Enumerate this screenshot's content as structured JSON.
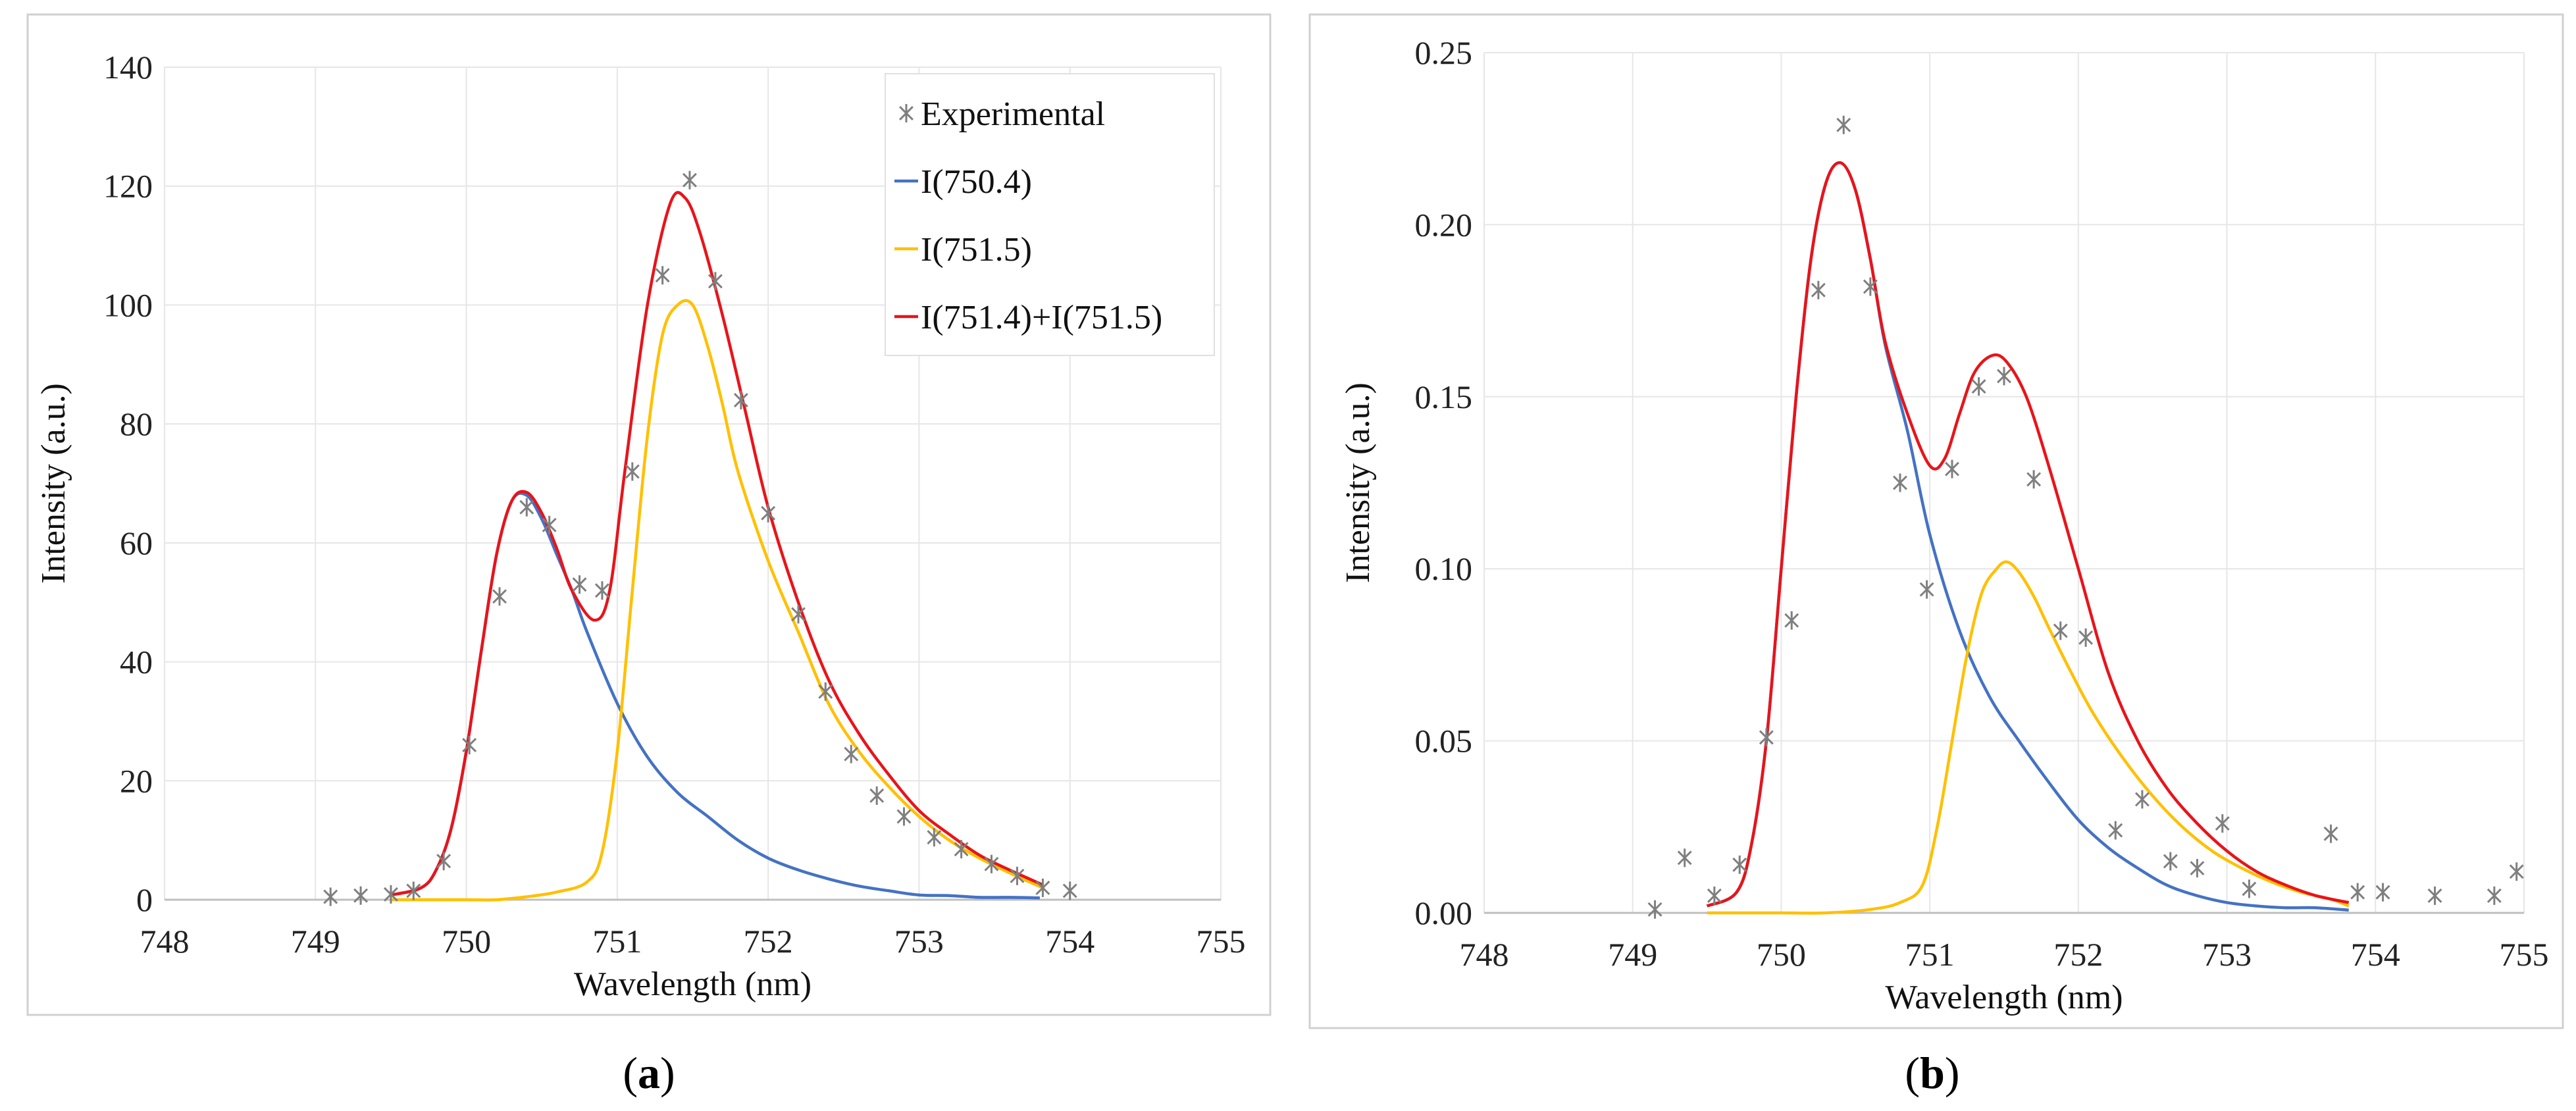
{
  "colors": {
    "blue": "#4472C4",
    "yellow": "#FFC000",
    "red": "#E8141A",
    "marker": "#7f7f7f",
    "grid": "#e6e6e6",
    "frame": "#d0d0d0"
  },
  "captions": {
    "a": "a",
    "b": "b"
  },
  "chart_data": [
    {
      "type": "line",
      "panel": "a",
      "title": "",
      "xlabel": "Wavelength (nm)",
      "ylabel": "Intensity (a.u.)",
      "xlim": [
        748,
        755
      ],
      "ylim": [
        0,
        140
      ],
      "xticks": [
        "748",
        "749",
        "750",
        "751",
        "752",
        "753",
        "754",
        "755"
      ],
      "yticks": [
        "0",
        "20",
        "40",
        "60",
        "80",
        "100",
        "120",
        "140"
      ],
      "grid": true,
      "legend_position": "top-right",
      "legend": [
        "Experimental",
        "I(750.4)",
        "I(751.5)",
        "I(751.4)+I(751.5)"
      ],
      "series": [
        {
          "name": "Experimental",
          "kind": "scatter",
          "marker": "asterisk",
          "color": "#7f7f7f",
          "x": [
            749.1,
            749.3,
            749.5,
            749.65,
            749.85,
            750.02,
            750.22,
            750.4,
            750.55,
            750.75,
            750.9,
            751.1,
            751.3,
            751.48,
            751.65,
            751.82,
            752.0,
            752.2,
            752.38,
            752.55,
            752.72,
            752.9,
            753.1,
            753.28,
            753.48,
            753.65,
            753.82,
            754.0
          ],
          "y": [
            0.5,
            0.7,
            0.9,
            1.5,
            6.5,
            26,
            51,
            66,
            63,
            53,
            52,
            72,
            105,
            121,
            104,
            84,
            65,
            48,
            35,
            24.5,
            17.5,
            14,
            10.5,
            8.5,
            6,
            4,
            2,
            1.5
          ]
        },
        {
          "name": "I(750.4)",
          "kind": "line",
          "color": "#4472C4",
          "x": [
            749.5,
            749.7,
            749.8,
            749.9,
            750.0,
            750.1,
            750.2,
            750.3,
            750.4,
            750.5,
            750.6,
            750.7,
            750.8,
            751.0,
            751.2,
            751.4,
            751.6,
            751.8,
            752.0,
            752.2,
            752.4,
            752.6,
            752.8,
            753.0,
            753.2,
            753.4,
            753.6,
            753.8
          ],
          "y": [
            0.8,
            2,
            5,
            12,
            25,
            42,
            58,
            67,
            68,
            64,
            58,
            52,
            45,
            33,
            24,
            18,
            14,
            10,
            7,
            5,
            3.5,
            2.3,
            1.5,
            0.8,
            0.7,
            0.4,
            0.4,
            0.3
          ]
        },
        {
          "name": "I(751.5)",
          "kind": "line",
          "color": "#FFC000",
          "x": [
            749.5,
            749.8,
            750.0,
            750.2,
            750.4,
            750.6,
            750.8,
            750.9,
            751.0,
            751.1,
            751.2,
            751.3,
            751.4,
            751.5,
            751.6,
            751.7,
            751.8,
            752.0,
            752.2,
            752.4,
            752.6,
            752.8,
            753.0,
            753.2,
            753.4,
            753.6,
            753.82
          ],
          "y": [
            0,
            0,
            0,
            0,
            0.5,
            1.3,
            3,
            8,
            25,
            52,
            78,
            95,
            100,
            100,
            93,
            83,
            72,
            57,
            45,
            33,
            25,
            19,
            14,
            10,
            7,
            4.5,
            2
          ]
        },
        {
          "name": "I(751.4)+I(751.5)",
          "kind": "line",
          "color": "#E8141A",
          "x": [
            749.5,
            749.7,
            749.8,
            749.9,
            750.0,
            750.1,
            750.2,
            750.3,
            750.4,
            750.5,
            750.6,
            750.7,
            750.85,
            750.95,
            751.05,
            751.2,
            751.35,
            751.45,
            751.55,
            751.7,
            751.85,
            752.0,
            752.2,
            752.4,
            752.6,
            752.8,
            753.0,
            753.2,
            753.4,
            753.6,
            753.82
          ],
          "y": [
            0.8,
            2,
            5,
            12,
            25,
            42,
            58,
            67,
            68.5,
            65,
            59,
            52,
            47,
            52,
            72,
            100,
            117,
            118,
            112,
            98,
            82,
            66,
            50,
            37,
            28,
            21,
            15,
            11,
            7.5,
            5,
            2.5
          ]
        }
      ]
    },
    {
      "type": "line",
      "panel": "b",
      "title": "",
      "xlabel": "Wavelength (nm)",
      "ylabel": "Intensity (a.u.)",
      "xlim": [
        748,
        755
      ],
      "ylim": [
        0,
        0.25
      ],
      "xticks": [
        "748",
        "749",
        "750",
        "751",
        "752",
        "753",
        "754",
        "755"
      ],
      "yticks": [
        "0.00",
        "0.05",
        "0.10",
        "0.15",
        "0.20",
        "0.25"
      ],
      "grid": true,
      "legend_position": "none",
      "series": [
        {
          "name": "Experimental",
          "kind": "scatter",
          "marker": "asterisk",
          "color": "#7f7f7f",
          "x": [
            749.15,
            749.35,
            749.55,
            749.72,
            749.9,
            750.07,
            750.25,
            750.42,
            750.6,
            750.8,
            750.98,
            751.15,
            751.33,
            751.5,
            751.7,
            751.88,
            752.05,
            752.25,
            752.43,
            752.62,
            752.8,
            752.97,
            753.15,
            753.7,
            753.88,
            754.05,
            754.4,
            754.8,
            754.95
          ],
          "y": [
            0.001,
            0.016,
            0.005,
            0.014,
            0.051,
            0.085,
            0.181,
            0.229,
            0.182,
            0.125,
            0.094,
            0.129,
            0.153,
            0.156,
            0.126,
            0.082,
            0.08,
            0.024,
            0.033,
            0.015,
            0.013,
            0.026,
            0.007,
            0.023,
            0.006,
            0.006,
            0.005,
            0.005,
            0.012
          ]
        },
        {
          "name": "I(750.4)",
          "kind": "line",
          "color": "#4472C4",
          "x": [
            749.5,
            749.7,
            749.8,
            749.9,
            750.0,
            750.1,
            750.2,
            750.3,
            750.4,
            750.5,
            750.6,
            750.7,
            750.85,
            751.0,
            751.2,
            751.4,
            751.6,
            751.8,
            752.0,
            752.2,
            752.4,
            752.6,
            752.8,
            753.0,
            753.2,
            753.4,
            753.6,
            753.82
          ],
          "y": [
            0.002,
            0.006,
            0.02,
            0.05,
            0.1,
            0.15,
            0.19,
            0.212,
            0.218,
            0.21,
            0.19,
            0.165,
            0.14,
            0.11,
            0.082,
            0.063,
            0.05,
            0.038,
            0.027,
            0.019,
            0.013,
            0.008,
            0.005,
            0.003,
            0.002,
            0.0015,
            0.0015,
            0.0008
          ]
        },
        {
          "name": "I(751.5)",
          "kind": "line",
          "color": "#FFC000",
          "x": [
            749.5,
            749.8,
            750.0,
            750.3,
            750.6,
            750.8,
            750.95,
            751.05,
            751.15,
            751.25,
            751.35,
            751.45,
            751.52,
            751.6,
            751.7,
            751.8,
            751.95,
            752.1,
            752.3,
            752.5,
            752.7,
            752.9,
            753.1,
            753.3,
            753.5,
            753.7,
            753.82
          ],
          "y": [
            0,
            0,
            0,
            0,
            0.001,
            0.003,
            0.008,
            0.025,
            0.05,
            0.075,
            0.093,
            0.1,
            0.102,
            0.099,
            0.092,
            0.083,
            0.07,
            0.058,
            0.045,
            0.034,
            0.025,
            0.018,
            0.013,
            0.009,
            0.006,
            0.004,
            0.002
          ]
        },
        {
          "name": "I(751.4)+I(751.5)",
          "kind": "line",
          "color": "#E8141A",
          "x": [
            749.5,
            749.7,
            749.8,
            749.9,
            750.0,
            750.1,
            750.2,
            750.3,
            750.4,
            750.5,
            750.6,
            750.7,
            750.85,
            751.0,
            751.1,
            751.2,
            751.3,
            751.42,
            751.52,
            751.65,
            751.8,
            752.0,
            752.2,
            752.4,
            752.6,
            752.8,
            753.0,
            753.2,
            753.4,
            753.6,
            753.82
          ],
          "y": [
            0.002,
            0.006,
            0.02,
            0.05,
            0.1,
            0.15,
            0.19,
            0.212,
            0.218,
            0.21,
            0.19,
            0.166,
            0.145,
            0.13,
            0.132,
            0.145,
            0.157,
            0.162,
            0.16,
            0.15,
            0.13,
            0.1,
            0.07,
            0.05,
            0.036,
            0.026,
            0.018,
            0.012,
            0.008,
            0.005,
            0.003
          ]
        }
      ]
    }
  ]
}
